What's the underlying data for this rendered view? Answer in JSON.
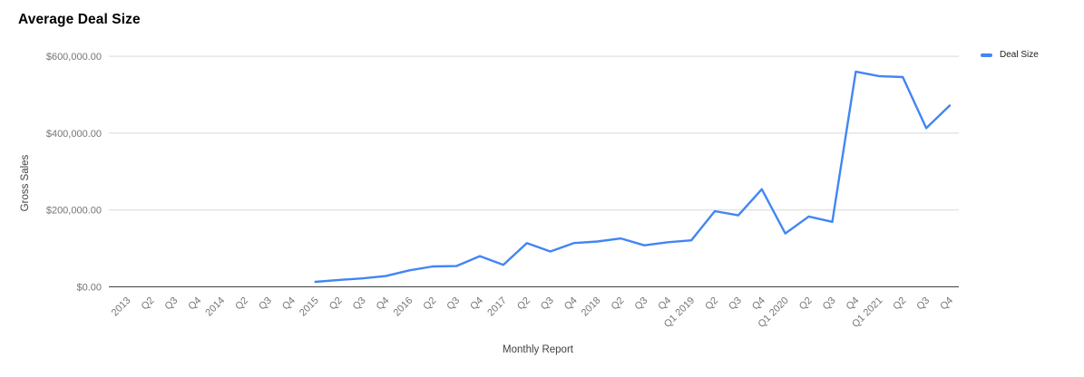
{
  "chart_data": {
    "type": "line",
    "title": "Average Deal Size",
    "xlabel": "Monthly Report",
    "ylabel": "Gross Sales",
    "legend_position": "right",
    "grid": true,
    "ylim": [
      0,
      600000
    ],
    "y_ticks": [
      {
        "value": 0,
        "label": "$0.00"
      },
      {
        "value": 200000,
        "label": "$200,000.00"
      },
      {
        "value": 400000,
        "label": "$400,000.00"
      },
      {
        "value": 600000,
        "label": "$600,000.00"
      }
    ],
    "categories": [
      "2013",
      "Q2",
      "Q3",
      "Q4",
      "2014",
      "Q2",
      "Q3",
      "Q4",
      "2015",
      "Q2",
      "Q3",
      "Q4",
      "2016",
      "Q2",
      "Q3",
      "Q4",
      "2017",
      "Q2",
      "Q3",
      "Q4",
      "2018",
      "Q2",
      "Q3",
      "Q4",
      "Q1 2019",
      "Q2",
      "Q3",
      "Q4",
      "Q1 2020",
      "Q2",
      "Q3",
      "Q4",
      "Q1 2021",
      "Q2",
      "Q3",
      "Q4"
    ],
    "series": [
      {
        "name": "Deal Size",
        "color": "#4285f4",
        "values": [
          null,
          null,
          null,
          null,
          null,
          null,
          null,
          null,
          13000,
          18000,
          22000,
          28000,
          43000,
          53000,
          54000,
          80000,
          57000,
          114000,
          92000,
          114000,
          118000,
          126000,
          108000,
          116000,
          121000,
          197000,
          186000,
          254000,
          139000,
          183000,
          169000,
          560000,
          548000,
          546000,
          413000,
          472000
        ]
      }
    ],
    "colors": {
      "series_line": "#4285f4",
      "gridline": "#d9d9d9",
      "axis_line": "#424242",
      "tick_label": "#757575",
      "axis_title": "#424242",
      "title": "#000000"
    }
  }
}
